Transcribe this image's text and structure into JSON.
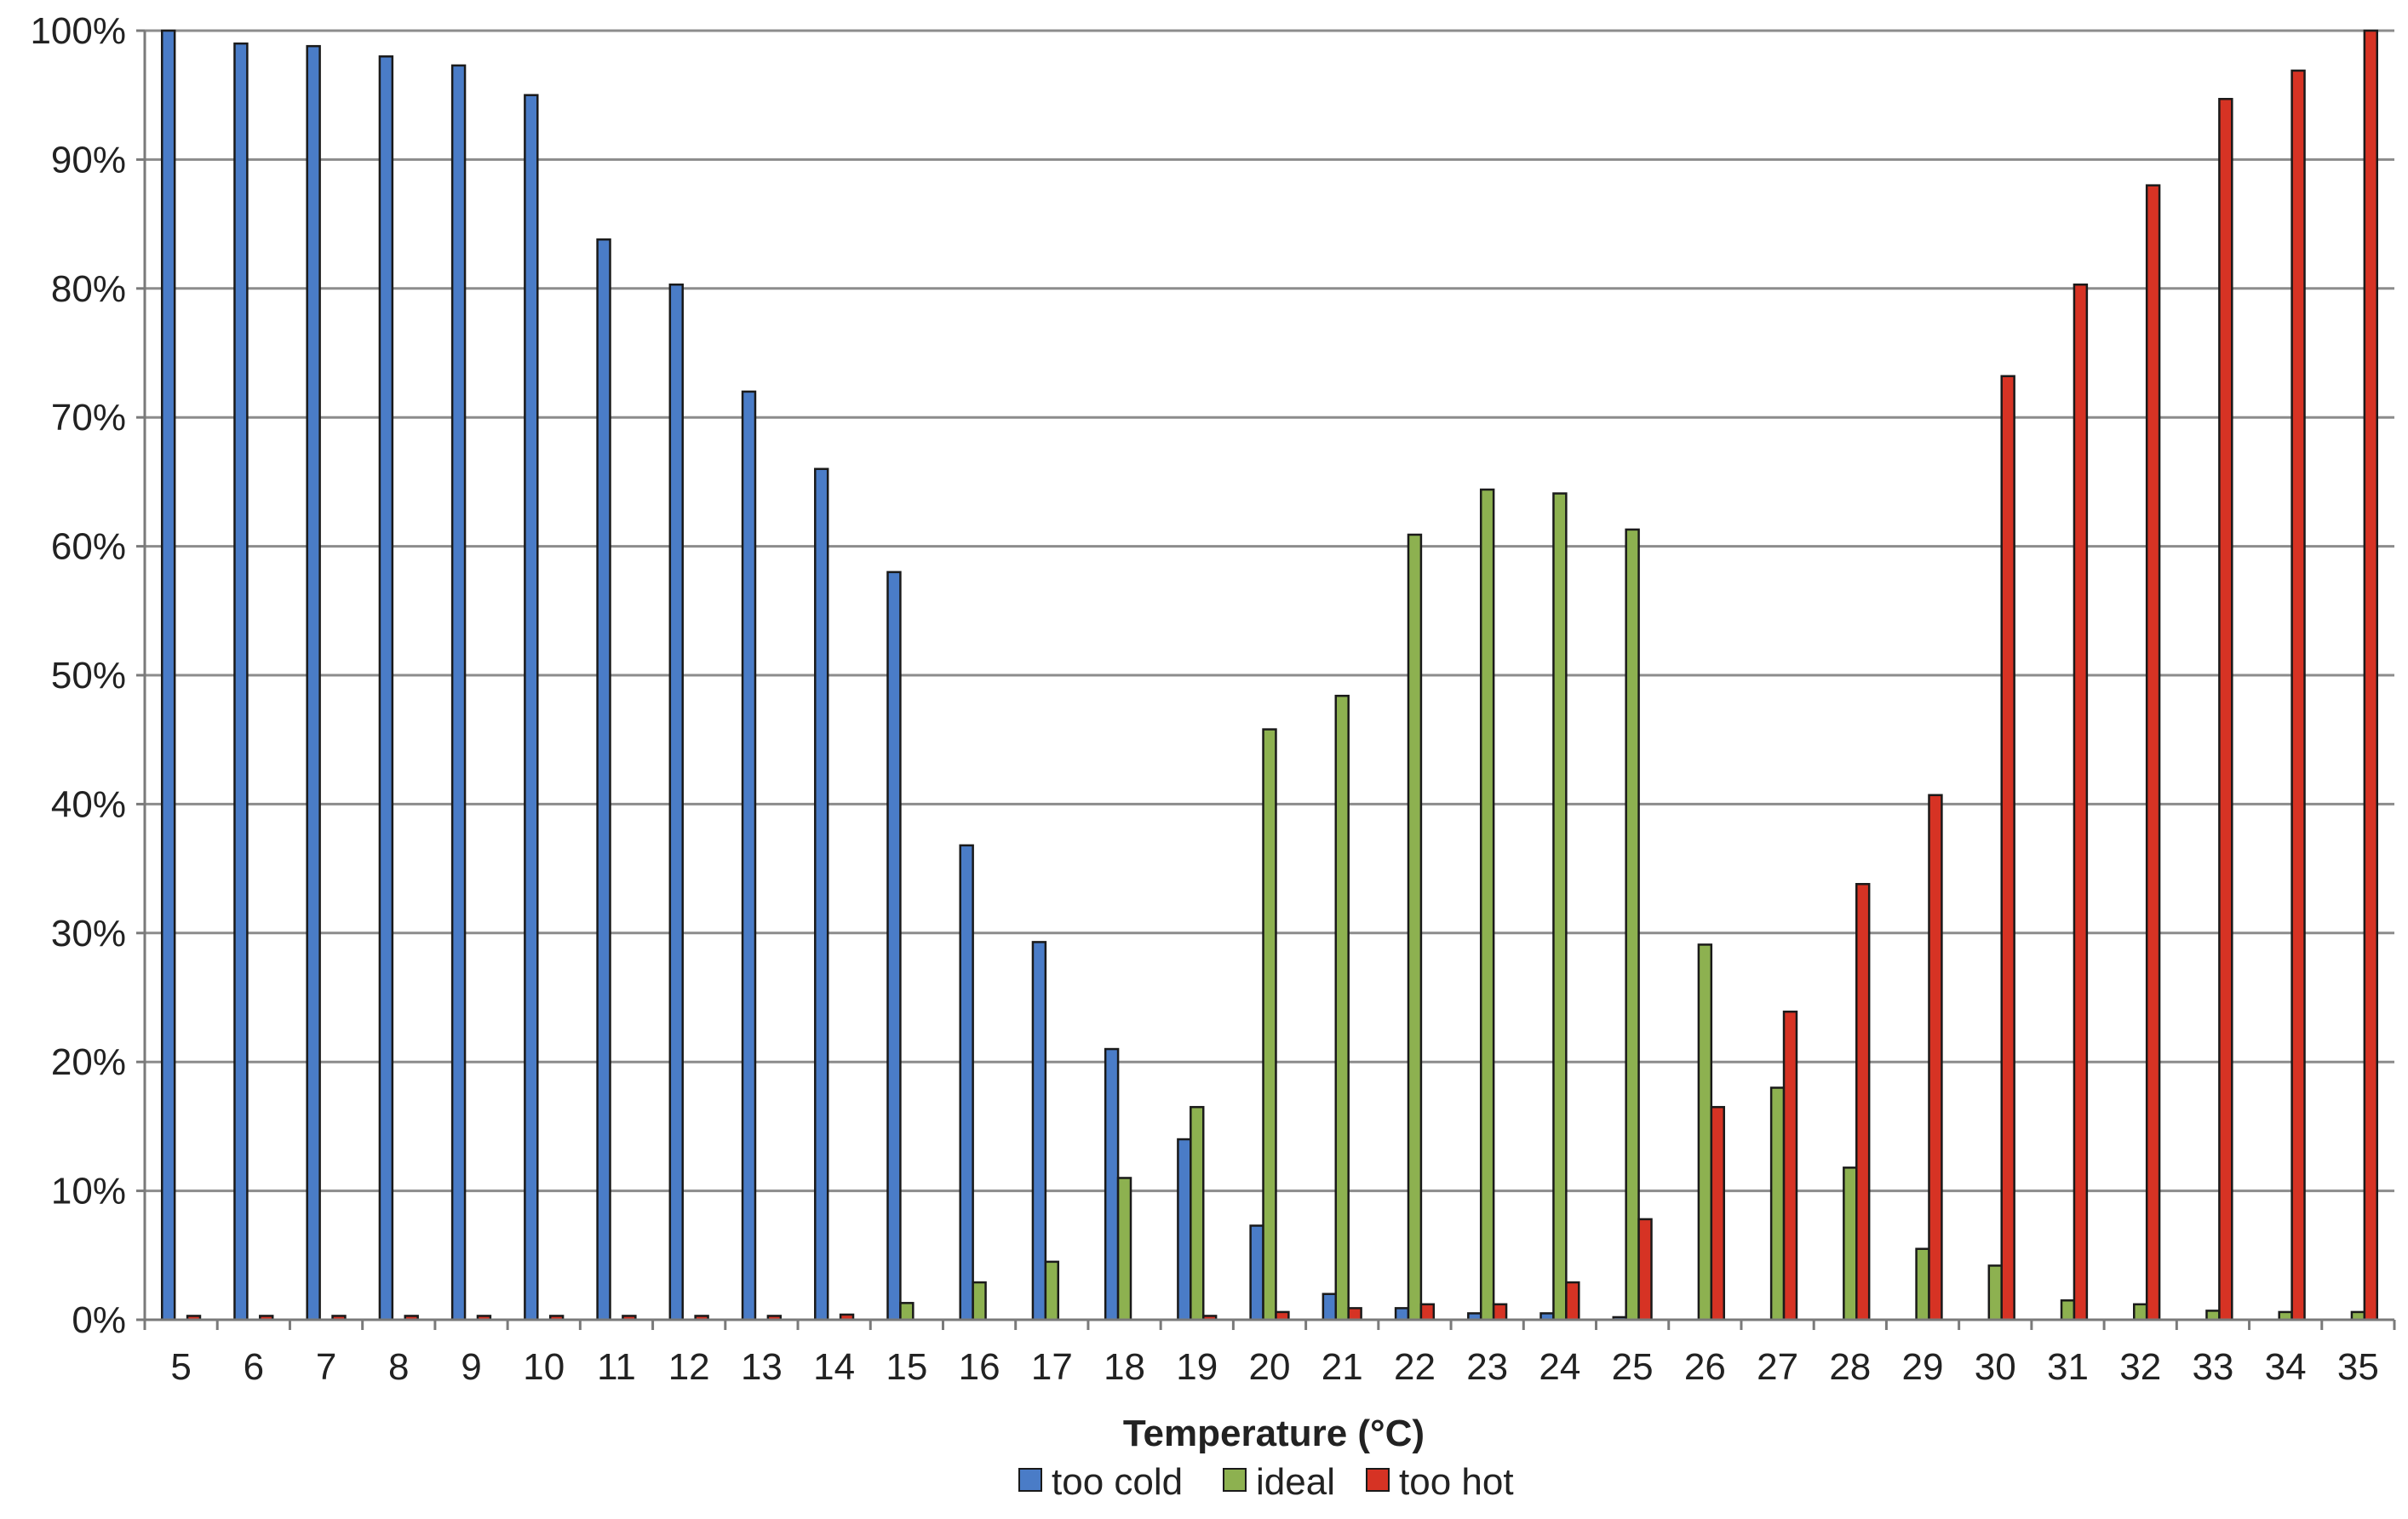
{
  "chart_data": {
    "type": "bar",
    "title": "",
    "xlabel": "Temperature (°C)",
    "ylabel": "",
    "ylim": [
      0,
      100
    ],
    "y_ticks": [
      0,
      10,
      20,
      30,
      40,
      50,
      60,
      70,
      80,
      90,
      100
    ],
    "y_tick_labels": [
      "0%",
      "10%",
      "20%",
      "30%",
      "40%",
      "50%",
      "60%",
      "70%",
      "80%",
      "90%",
      "100%"
    ],
    "grid": true,
    "legend_position": "bottom",
    "categories": [
      "5",
      "6",
      "7",
      "8",
      "9",
      "10",
      "11",
      "12",
      "13",
      "14",
      "15",
      "16",
      "17",
      "18",
      "19",
      "20",
      "21",
      "22",
      "23",
      "24",
      "25",
      "26",
      "27",
      "28",
      "29",
      "30",
      "31",
      "32",
      "33",
      "34",
      "35"
    ],
    "series": [
      {
        "name": "too cold",
        "color": "#4a7cc7",
        "values": [
          100,
          99,
          98.8,
          98,
          97.3,
          95,
          83.8,
          80.3,
          72,
          66,
          58,
          36.8,
          29.3,
          21,
          14,
          7.3,
          2,
          0.9,
          0.5,
          0.5,
          0.2,
          0,
          0,
          0,
          0,
          0,
          0,
          0,
          0,
          0,
          0
        ]
      },
      {
        "name": "ideal",
        "color": "#8db150",
        "values": [
          0,
          0,
          0,
          0,
          0,
          0,
          0,
          0,
          0,
          0,
          1.3,
          2.9,
          4.5,
          11,
          16.5,
          45.8,
          48.4,
          60.9,
          64.4,
          64.1,
          61.3,
          29.1,
          18,
          11.8,
          5.5,
          4.2,
          1.5,
          1.2,
          0.7,
          0.6,
          0.6
        ]
      },
      {
        "name": "too hot",
        "color": "#d63324",
        "values": [
          0.3,
          0.3,
          0.3,
          0.3,
          0.3,
          0.3,
          0.3,
          0.3,
          0.3,
          0.4,
          0,
          0,
          0,
          0,
          0.3,
          0.6,
          0.9,
          1.2,
          1.2,
          2.9,
          7.8,
          16.5,
          23.9,
          33.8,
          40.7,
          73.2,
          80.3,
          88,
          94.7,
          96.9,
          100
        ]
      }
    ]
  }
}
